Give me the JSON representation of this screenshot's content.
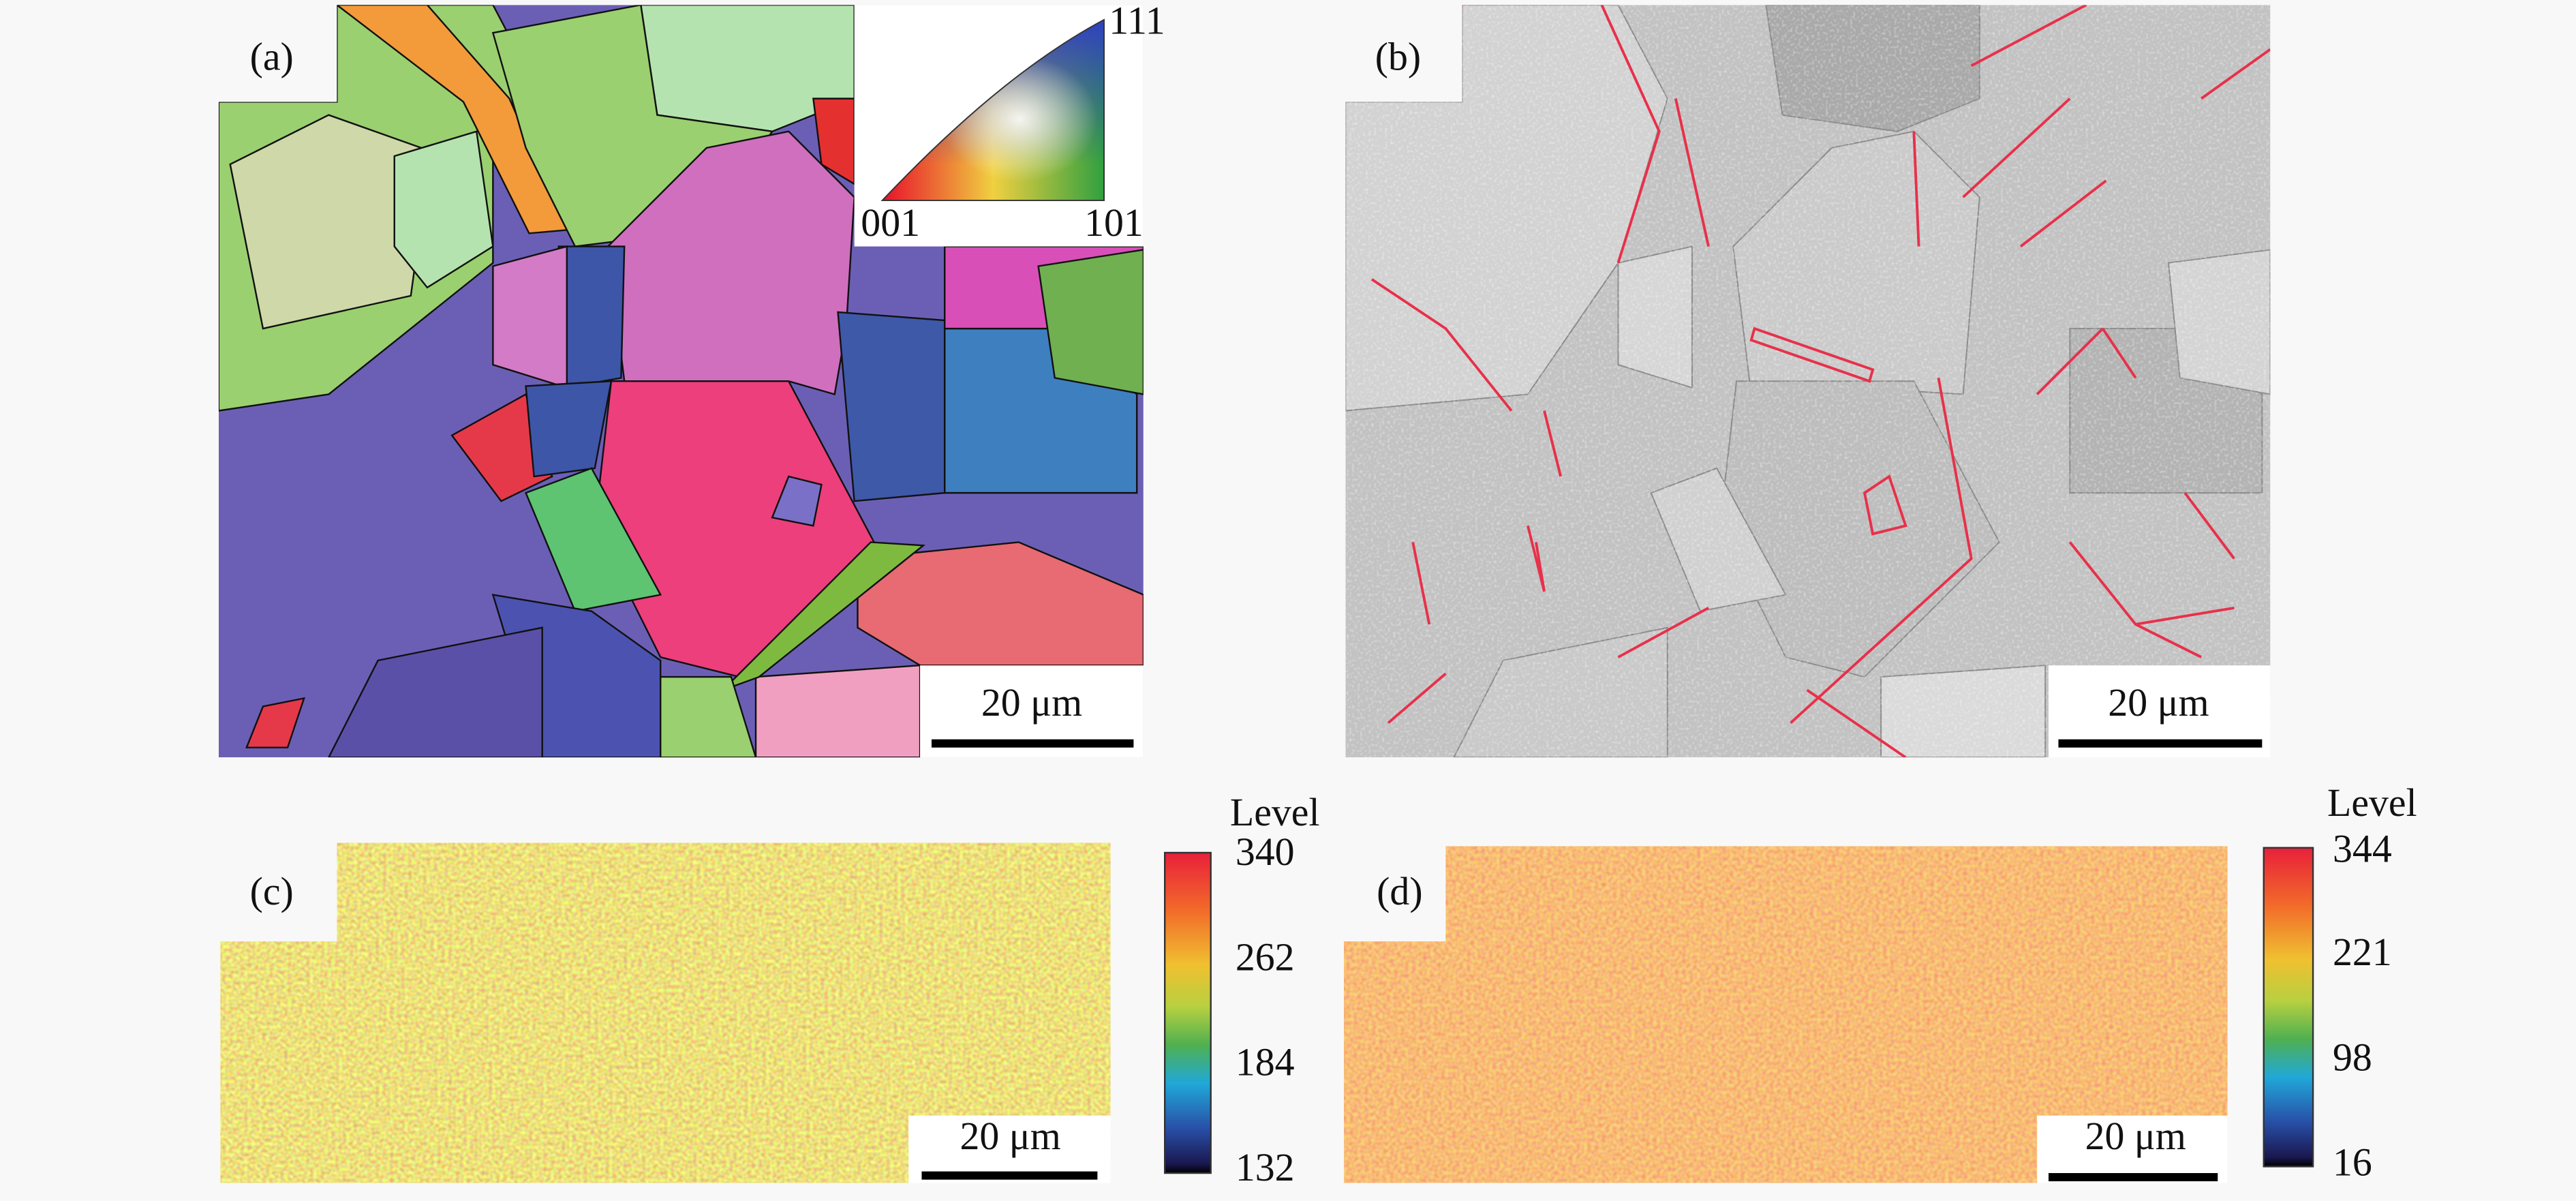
{
  "panels": [
    {
      "label": "(a)",
      "scale_bar": "20 μm",
      "ipf_key": {
        "top": "111",
        "left": "001",
        "right": "101"
      }
    },
    {
      "label": "(b)",
      "scale_bar": "20 μm"
    },
    {
      "label": "(c)",
      "scale_bar": "20 μm",
      "colorbar": {
        "title": "Level",
        "ticks": [
          340,
          262,
          184,
          132
        ]
      }
    },
    {
      "label": "(d)",
      "scale_bar": "20 μm",
      "colorbar": {
        "title": "Level",
        "ticks": [
          344,
          221,
          98,
          16
        ]
      }
    }
  ]
}
